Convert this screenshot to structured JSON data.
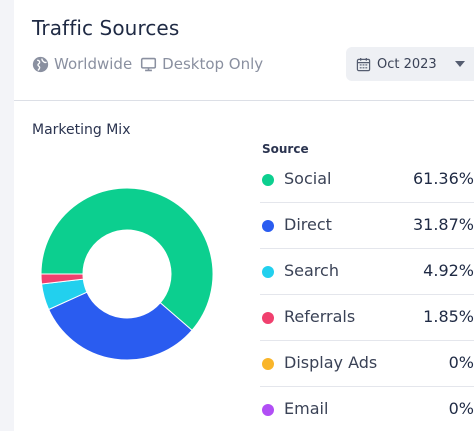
{
  "header": {
    "title": "Traffic Sources",
    "region_label": "Worldwide",
    "region_icon": "globe-icon",
    "device_label": "Desktop Only",
    "device_icon": "desktop-icon",
    "date_select": {
      "value": "Oct 2023",
      "icon": "calendar-icon"
    }
  },
  "card": {
    "title": "Marketing Mix",
    "legend_header": "Source"
  },
  "chart_data": {
    "type": "pie",
    "donut": true,
    "categories": [
      "Social",
      "Direct",
      "Search",
      "Referrals",
      "Display Ads",
      "Email"
    ],
    "values": [
      61.36,
      31.87,
      4.92,
      1.85,
      0,
      0
    ],
    "value_labels": [
      "61.36%",
      "31.87%",
      "4.92%",
      "1.85%",
      "0%",
      "0%"
    ],
    "colors": [
      "#0ccf8f",
      "#2a5cf0",
      "#22d0ee",
      "#f0406e",
      "#f9b52a",
      "#b14ef5"
    ],
    "start_angle_deg": 180,
    "direction": "clockwise"
  }
}
